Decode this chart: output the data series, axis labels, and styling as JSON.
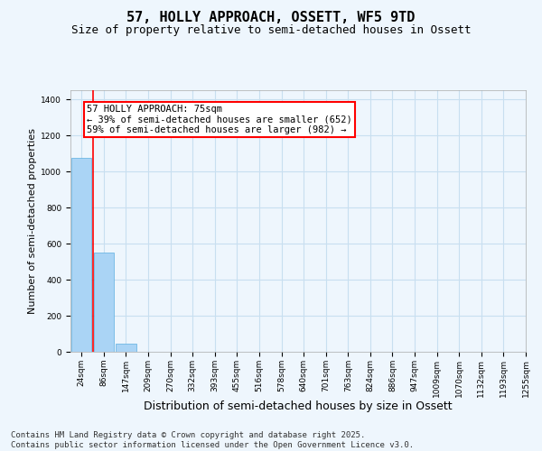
{
  "title": "57, HOLLY APPROACH, OSSETT, WF5 9TD",
  "subtitle": "Size of property relative to semi-detached houses in Ossett",
  "xlabel": "Distribution of semi-detached houses by size in Ossett",
  "ylabel": "Number of semi-detached properties",
  "bar_values": [
    1075,
    550,
    45,
    2,
    0,
    0,
    0,
    0,
    0,
    0,
    0,
    0,
    0,
    0,
    0,
    0,
    0,
    0,
    0,
    0
  ],
  "categories": [
    "24sqm",
    "86sqm",
    "147sqm",
    "209sqm",
    "270sqm",
    "332sqm",
    "393sqm",
    "455sqm",
    "516sqm",
    "578sqm",
    "640sqm",
    "701sqm",
    "763sqm",
    "824sqm",
    "886sqm",
    "947sqm",
    "1009sqm",
    "1070sqm",
    "1132sqm",
    "1193sqm",
    "1255sqm"
  ],
  "bar_color": "#aad4f5",
  "bar_edge_color": "#5baee0",
  "background_color": "#eef6fd",
  "grid_color": "#c8dff0",
  "annotation_text": "57 HOLLY APPROACH: 75sqm\n← 39% of semi-detached houses are smaller (652)\n59% of semi-detached houses are larger (982) →",
  "annotation_box_color": "#ff0000",
  "ylim": [
    0,
    1450
  ],
  "yticks": [
    0,
    200,
    400,
    600,
    800,
    1000,
    1200,
    1400
  ],
  "footnote": "Contains HM Land Registry data © Crown copyright and database right 2025.\nContains public sector information licensed under the Open Government Licence v3.0.",
  "title_fontsize": 11,
  "subtitle_fontsize": 9,
  "xlabel_fontsize": 9,
  "ylabel_fontsize": 8,
  "tick_fontsize": 6.5,
  "annot_fontsize": 7.5,
  "footnote_fontsize": 6.5
}
